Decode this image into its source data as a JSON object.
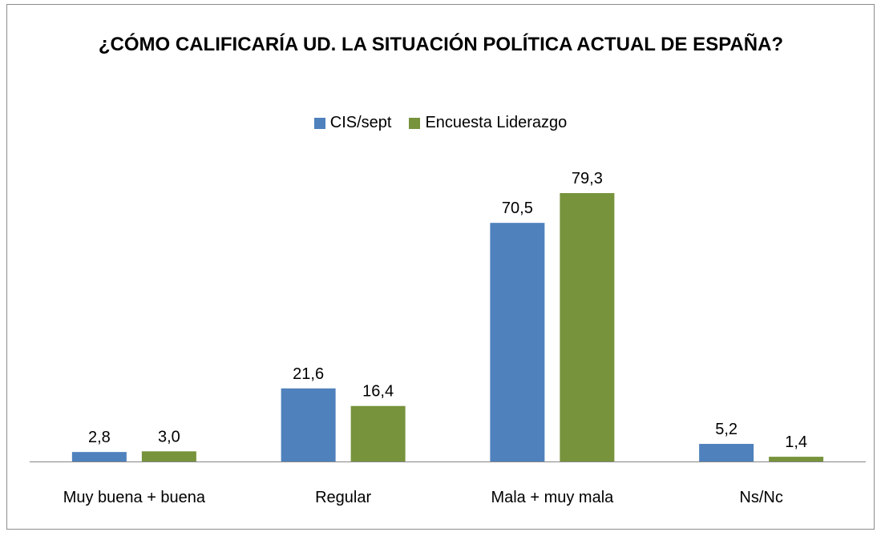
{
  "chart_data": {
    "type": "bar",
    "title": "¿CÓMO CALIFICARÍA UD. LA SITUACIÓN POLÍTICA ACTUAL DE ESPAÑA?",
    "categories": [
      "Muy buena + buena",
      "Regular",
      "Mala + muy mala",
      "Ns/Nc"
    ],
    "series": [
      {
        "name": "CIS/sept",
        "color": "#4f81bd",
        "values": [
          2.8,
          21.6,
          70.5,
          5.2
        ],
        "value_labels": [
          "2,8",
          "21,6",
          "70,5",
          "5,2"
        ]
      },
      {
        "name": "Encuesta Liderazgo",
        "color": "#77933c",
        "values": [
          3.0,
          16.4,
          79.3,
          1.4
        ],
        "value_labels": [
          "3,0",
          "16,4",
          "79,3",
          "1,4"
        ]
      }
    ],
    "legend": "top"
  }
}
